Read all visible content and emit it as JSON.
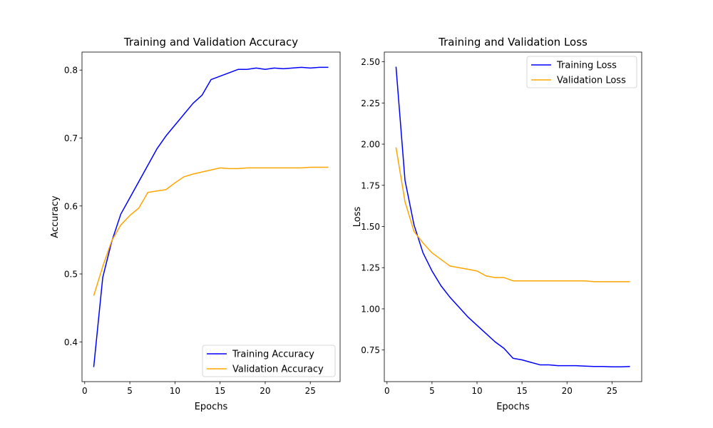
{
  "chart_data": [
    {
      "type": "line",
      "title": "Training and Validation Accuracy",
      "xlabel": "Epochs",
      "ylabel": "Accuracy",
      "xlim": [
        -0.3,
        28.3
      ],
      "ylim": [
        0.3415,
        0.8265
      ],
      "xticks": [
        0,
        5,
        10,
        15,
        20,
        25
      ],
      "yticks": [
        0.4,
        0.5,
        0.6,
        0.7,
        0.8
      ],
      "grid": false,
      "legend_position": "lower-right",
      "x": [
        1,
        2,
        3,
        4,
        5,
        6,
        7,
        8,
        9,
        10,
        11,
        12,
        13,
        14,
        15,
        16,
        17,
        18,
        19,
        20,
        21,
        22,
        23,
        24,
        25,
        26,
        27
      ],
      "series": [
        {
          "name": "Training Accuracy",
          "color": "#0000ff",
          "values": [
            0.363,
            0.495,
            0.548,
            0.588,
            0.612,
            0.636,
            0.66,
            0.684,
            0.703,
            0.719,
            0.735,
            0.751,
            0.763,
            0.786,
            0.791,
            0.796,
            0.801,
            0.801,
            0.803,
            0.801,
            0.803,
            0.802,
            0.803,
            0.804,
            0.803,
            0.804,
            0.804
          ]
        },
        {
          "name": "Validation Accuracy",
          "color": "#ffa500",
          "values": [
            0.468,
            0.511,
            0.549,
            0.572,
            0.586,
            0.597,
            0.62,
            0.622,
            0.624,
            0.634,
            0.643,
            0.647,
            0.65,
            0.653,
            0.656,
            0.655,
            0.655,
            0.656,
            0.656,
            0.656,
            0.656,
            0.656,
            0.656,
            0.656,
            0.657,
            0.657,
            0.657
          ]
        }
      ]
    },
    {
      "type": "line",
      "title": "Training and Validation Loss",
      "xlabel": "Epochs",
      "ylabel": "Loss",
      "xlim": [
        -0.3,
        28.3
      ],
      "ylim": [
        0.558,
        2.559
      ],
      "xticks": [
        0,
        5,
        10,
        15,
        20,
        25
      ],
      "yticks": [
        0.75,
        1.0,
        1.25,
        1.5,
        1.75,
        2.0,
        2.25,
        2.5
      ],
      "yticklabels": [
        "0.75",
        "1.00",
        "1.25",
        "1.50",
        "1.75",
        "2.00",
        "2.25",
        "2.50"
      ],
      "grid": false,
      "legend_position": "upper-right",
      "x": [
        1,
        2,
        3,
        4,
        5,
        6,
        7,
        8,
        9,
        10,
        11,
        12,
        13,
        14,
        15,
        16,
        17,
        18,
        19,
        20,
        21,
        22,
        23,
        24,
        25,
        26,
        27
      ],
      "series": [
        {
          "name": "Training Loss",
          "color": "#0000ff",
          "values": [
            2.47,
            1.78,
            1.51,
            1.34,
            1.23,
            1.14,
            1.07,
            1.01,
            0.95,
            0.9,
            0.85,
            0.8,
            0.76,
            0.7,
            0.69,
            0.675,
            0.66,
            0.66,
            0.655,
            0.655,
            0.655,
            0.652,
            0.65,
            0.65,
            0.648,
            0.648,
            0.65
          ]
        },
        {
          "name": "Validation Loss",
          "color": "#ffa500",
          "values": [
            1.98,
            1.65,
            1.47,
            1.4,
            1.34,
            1.3,
            1.26,
            1.25,
            1.24,
            1.23,
            1.2,
            1.19,
            1.19,
            1.17,
            1.17,
            1.17,
            1.17,
            1.17,
            1.17,
            1.17,
            1.17,
            1.17,
            1.165,
            1.165,
            1.165,
            1.165,
            1.165
          ]
        }
      ]
    }
  ]
}
